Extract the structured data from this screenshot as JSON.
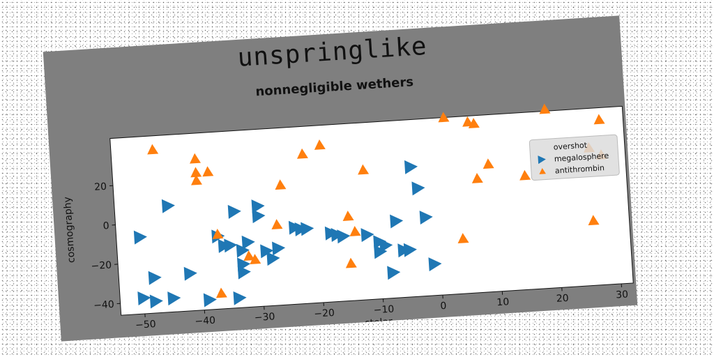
{
  "chart_data": {
    "type": "scatter",
    "title": "unspringlike",
    "subtitle": "nonnegligible wethers",
    "xlabel": "stelar",
    "ylabel": "cosmography",
    "xlim": [
      -54,
      32
    ],
    "ylim": [
      -46,
      44
    ],
    "xticks": [
      -50,
      -40,
      -30,
      -20,
      -10,
      0,
      10,
      20,
      30
    ],
    "yticks": [
      -40,
      -20,
      0,
      20
    ],
    "grid": false,
    "legend": {
      "position": "right",
      "entries": [
        "overshot",
        "megalosphere",
        "antithrombin"
      ]
    },
    "series": [
      {
        "name": "overshot",
        "marker": "none",
        "color": "#1f77b4",
        "points": []
      },
      {
        "name": "megalosphere",
        "marker": "triangle-right",
        "color": "#1f77b4",
        "points": [
          [
            -45,
            8
          ],
          [
            -50,
            -7
          ],
          [
            -48,
            -28
          ],
          [
            -50,
            -38
          ],
          [
            -48,
            -40
          ],
          [
            -45,
            -39
          ],
          [
            -42,
            -27
          ],
          [
            -39,
            -41
          ],
          [
            -37,
            -9
          ],
          [
            -36,
            -14
          ],
          [
            -35,
            -14
          ],
          [
            -34,
            3
          ],
          [
            -33,
            -24
          ],
          [
            -33,
            -17
          ],
          [
            -33,
            -28
          ],
          [
            -32,
            -13
          ],
          [
            -30,
            5
          ],
          [
            -30,
            0
          ],
          [
            -29,
            -18
          ],
          [
            -28,
            -22
          ],
          [
            -27,
            -17
          ],
          [
            -24,
            -7
          ],
          [
            -23,
            -8
          ],
          [
            -22,
            -8
          ],
          [
            -18,
            -11
          ],
          [
            -17,
            -12
          ],
          [
            -16,
            -13
          ],
          [
            -12,
            -13
          ],
          [
            -10,
            -17
          ],
          [
            -10,
            -22
          ],
          [
            -9,
            -19
          ],
          [
            -8,
            -33
          ],
          [
            -7,
            -7
          ],
          [
            -6,
            -22
          ],
          [
            -5,
            -22
          ],
          [
            -4,
            20
          ],
          [
            -3,
            9
          ],
          [
            -2,
            -6
          ],
          [
            -1,
            -30
          ],
          [
            -34,
            -41
          ]
        ]
      },
      {
        "name": "antithrombin",
        "marker": "triangle-up",
        "color": "#ff7f0e",
        "points": [
          [
            -47,
            37
          ],
          [
            -40,
            31
          ],
          [
            -40,
            24
          ],
          [
            -40,
            20
          ],
          [
            -38,
            24
          ],
          [
            -37,
            -8
          ],
          [
            -37,
            -38
          ],
          [
            -32,
            -20
          ],
          [
            -31,
            -22
          ],
          [
            -27,
            -5
          ],
          [
            -26,
            15
          ],
          [
            -22,
            30
          ],
          [
            -19,
            34
          ],
          [
            -15,
            -3
          ],
          [
            -15,
            -27
          ],
          [
            -14,
            -11
          ],
          [
            -12,
            20
          ],
          [
            2,
            44
          ],
          [
            4,
            -18
          ],
          [
            6,
            41
          ],
          [
            7,
            40
          ],
          [
            7,
            12
          ],
          [
            9,
            19
          ],
          [
            15,
            12
          ],
          [
            19,
            45
          ],
          [
            26,
            24
          ],
          [
            26,
            -13
          ],
          [
            28,
            38
          ],
          [
            28,
            20
          ]
        ]
      }
    ]
  }
}
